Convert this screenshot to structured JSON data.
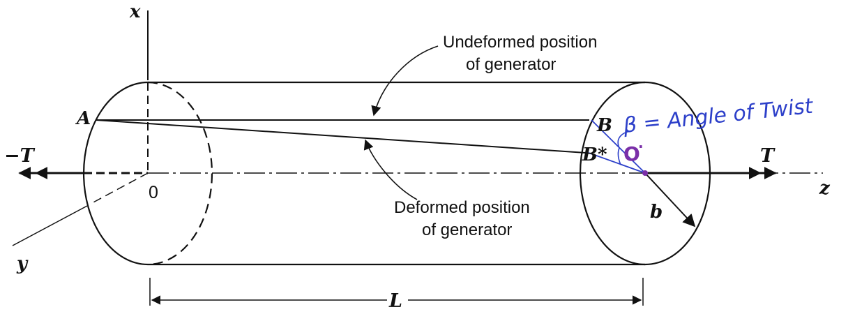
{
  "labels": {
    "axis_x": "x",
    "axis_y": "y",
    "axis_z": "z",
    "origin": "0",
    "neg_torque": "−T",
    "pos_torque": "T",
    "point_a": "A",
    "point_b": "B",
    "point_b_star": "B*",
    "radius": "b",
    "length": "L",
    "undeformed_line1": "Undeformed position",
    "undeformed_line2": "of generator",
    "deformed_line1": "Deformed position",
    "deformed_line2": "of generator",
    "handwritten_angle": "β = Angle of Twist",
    "handwritten_center": "O"
  },
  "colors": {
    "ink": "#111111",
    "annotation_blue": "#2c3fc9",
    "annotation_purple": "#7a2fa8"
  }
}
